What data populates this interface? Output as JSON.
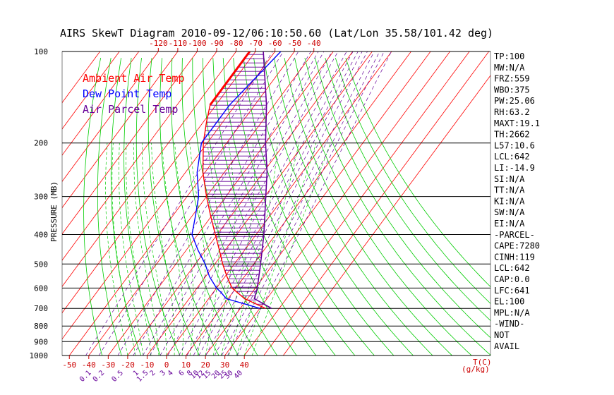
{
  "chart_data": {
    "type": "line",
    "title": "AIRS SkewT Diagram 2010-09-12/06:10:50.60 (Lat/Lon 35.58/101.42 deg)",
    "ylabel": "PRESSURE (MB)",
    "y_scale": "log-pressure, inverted",
    "ylim": [
      1000,
      100
    ],
    "xlabel_bottom": "T(C)",
    "xlabel_mixing": "(g/kg)",
    "pressure_ticks": [
      "1000",
      "900",
      "800",
      "700",
      "600",
      "500",
      "400",
      "300",
      "200",
      "100"
    ],
    "temp_ticks_bottom": [
      "-50",
      "-40",
      "-30",
      "-20",
      "-10",
      "0",
      "10",
      "20",
      "30",
      "40"
    ],
    "temp_ticks_top": [
      "-120",
      "-110",
      "-100",
      "-90",
      "-80",
      "-70",
      "-60",
      "-50",
      "-40"
    ],
    "mixing_ratio_ticks": [
      "0.1",
      "0.2",
      "0.5",
      "1",
      "1.5",
      "2",
      "3",
      "4",
      "6",
      "8",
      "10",
      "12",
      "15",
      "20",
      "25",
      "30",
      "40"
    ],
    "legend": [
      {
        "label": "Ambient Air Temp",
        "color": "#ff0000"
      },
      {
        "label": "Dew Point Temp",
        "color": "#0000ff"
      },
      {
        "label": "Air Parcel Temp",
        "color": "#660099"
      }
    ],
    "grid": true,
    "series": [
      {
        "name": "Ambient Air Temp",
        "color": "#ff0000",
        "points": [
          [
            700,
            33
          ],
          [
            650,
            18.5
          ],
          [
            600,
            8
          ],
          [
            550,
            1
          ],
          [
            500,
            -6
          ],
          [
            450,
            -13
          ],
          [
            400,
            -21
          ],
          [
            350,
            -30
          ],
          [
            300,
            -40
          ],
          [
            250,
            -51
          ],
          [
            200,
            -62
          ],
          [
            170,
            -68.5
          ],
          [
            150,
            -73
          ],
          [
            100,
            -73
          ]
        ]
      },
      {
        "name": "Dew Point Temp",
        "color": "#0000ff",
        "points": [
          [
            700,
            30
          ],
          [
            680,
            22
          ],
          [
            650,
            9
          ],
          [
            620,
            4
          ],
          [
            600,
            0
          ],
          [
            550,
            -8
          ],
          [
            500,
            -15
          ],
          [
            450,
            -24
          ],
          [
            400,
            -33
          ],
          [
            350,
            -38
          ],
          [
            300,
            -44
          ],
          [
            250,
            -54
          ],
          [
            200,
            -63
          ],
          [
            150,
            -63
          ],
          [
            100,
            -57
          ]
        ]
      },
      {
        "name": "Air Parcel Temp",
        "color": "#660099",
        "points": [
          [
            700,
            36
          ],
          [
            650,
            23.5
          ],
          [
            600,
            21
          ],
          [
            500,
            13.5
          ],
          [
            400,
            4
          ],
          [
            300,
            -9.5
          ],
          [
            250,
            -18
          ],
          [
            200,
            -30
          ],
          [
            150,
            -44
          ],
          [
            100,
            -66
          ]
        ]
      }
    ],
    "indices": [
      "TP:100",
      "MW:N/A",
      "FRZ:559",
      "WBO:375",
      "PW:25.06",
      "RH:63.2",
      "MAXT:19.1",
      "TH:2662",
      "L57:10.6",
      "LCL:642",
      "LI:-14.9",
      "SI:N/A",
      "TT:N/A",
      "KI:N/A",
      "SW:N/A",
      "EI:N/A",
      "-PARCEL-",
      "CAPE:7280",
      "CINH:119",
      "LCL:642",
      "CAP:0.0",
      "LFC:641",
      "EL:100",
      "MPL:N/A",
      "-WIND-",
      "NOT",
      "AVAIL"
    ]
  }
}
